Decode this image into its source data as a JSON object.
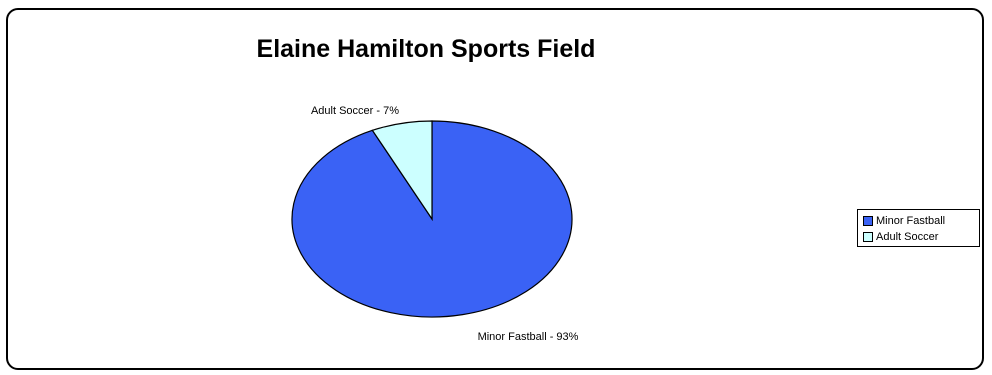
{
  "chart_data": {
    "type": "pie",
    "title": "Elaine Hamilton Sports Field",
    "slices": [
      {
        "name": "Minor Fastball",
        "value": 93,
        "label": "Minor Fastball - 93%",
        "color": "#3A62F5"
      },
      {
        "name": "Adult Soccer",
        "value": 7,
        "label": "Adult Soccer - 7%",
        "color": "#CCFFFF"
      }
    ],
    "legend": {
      "placement": "right",
      "entries": [
        "Minor Fastball",
        "Adult Soccer"
      ]
    }
  }
}
